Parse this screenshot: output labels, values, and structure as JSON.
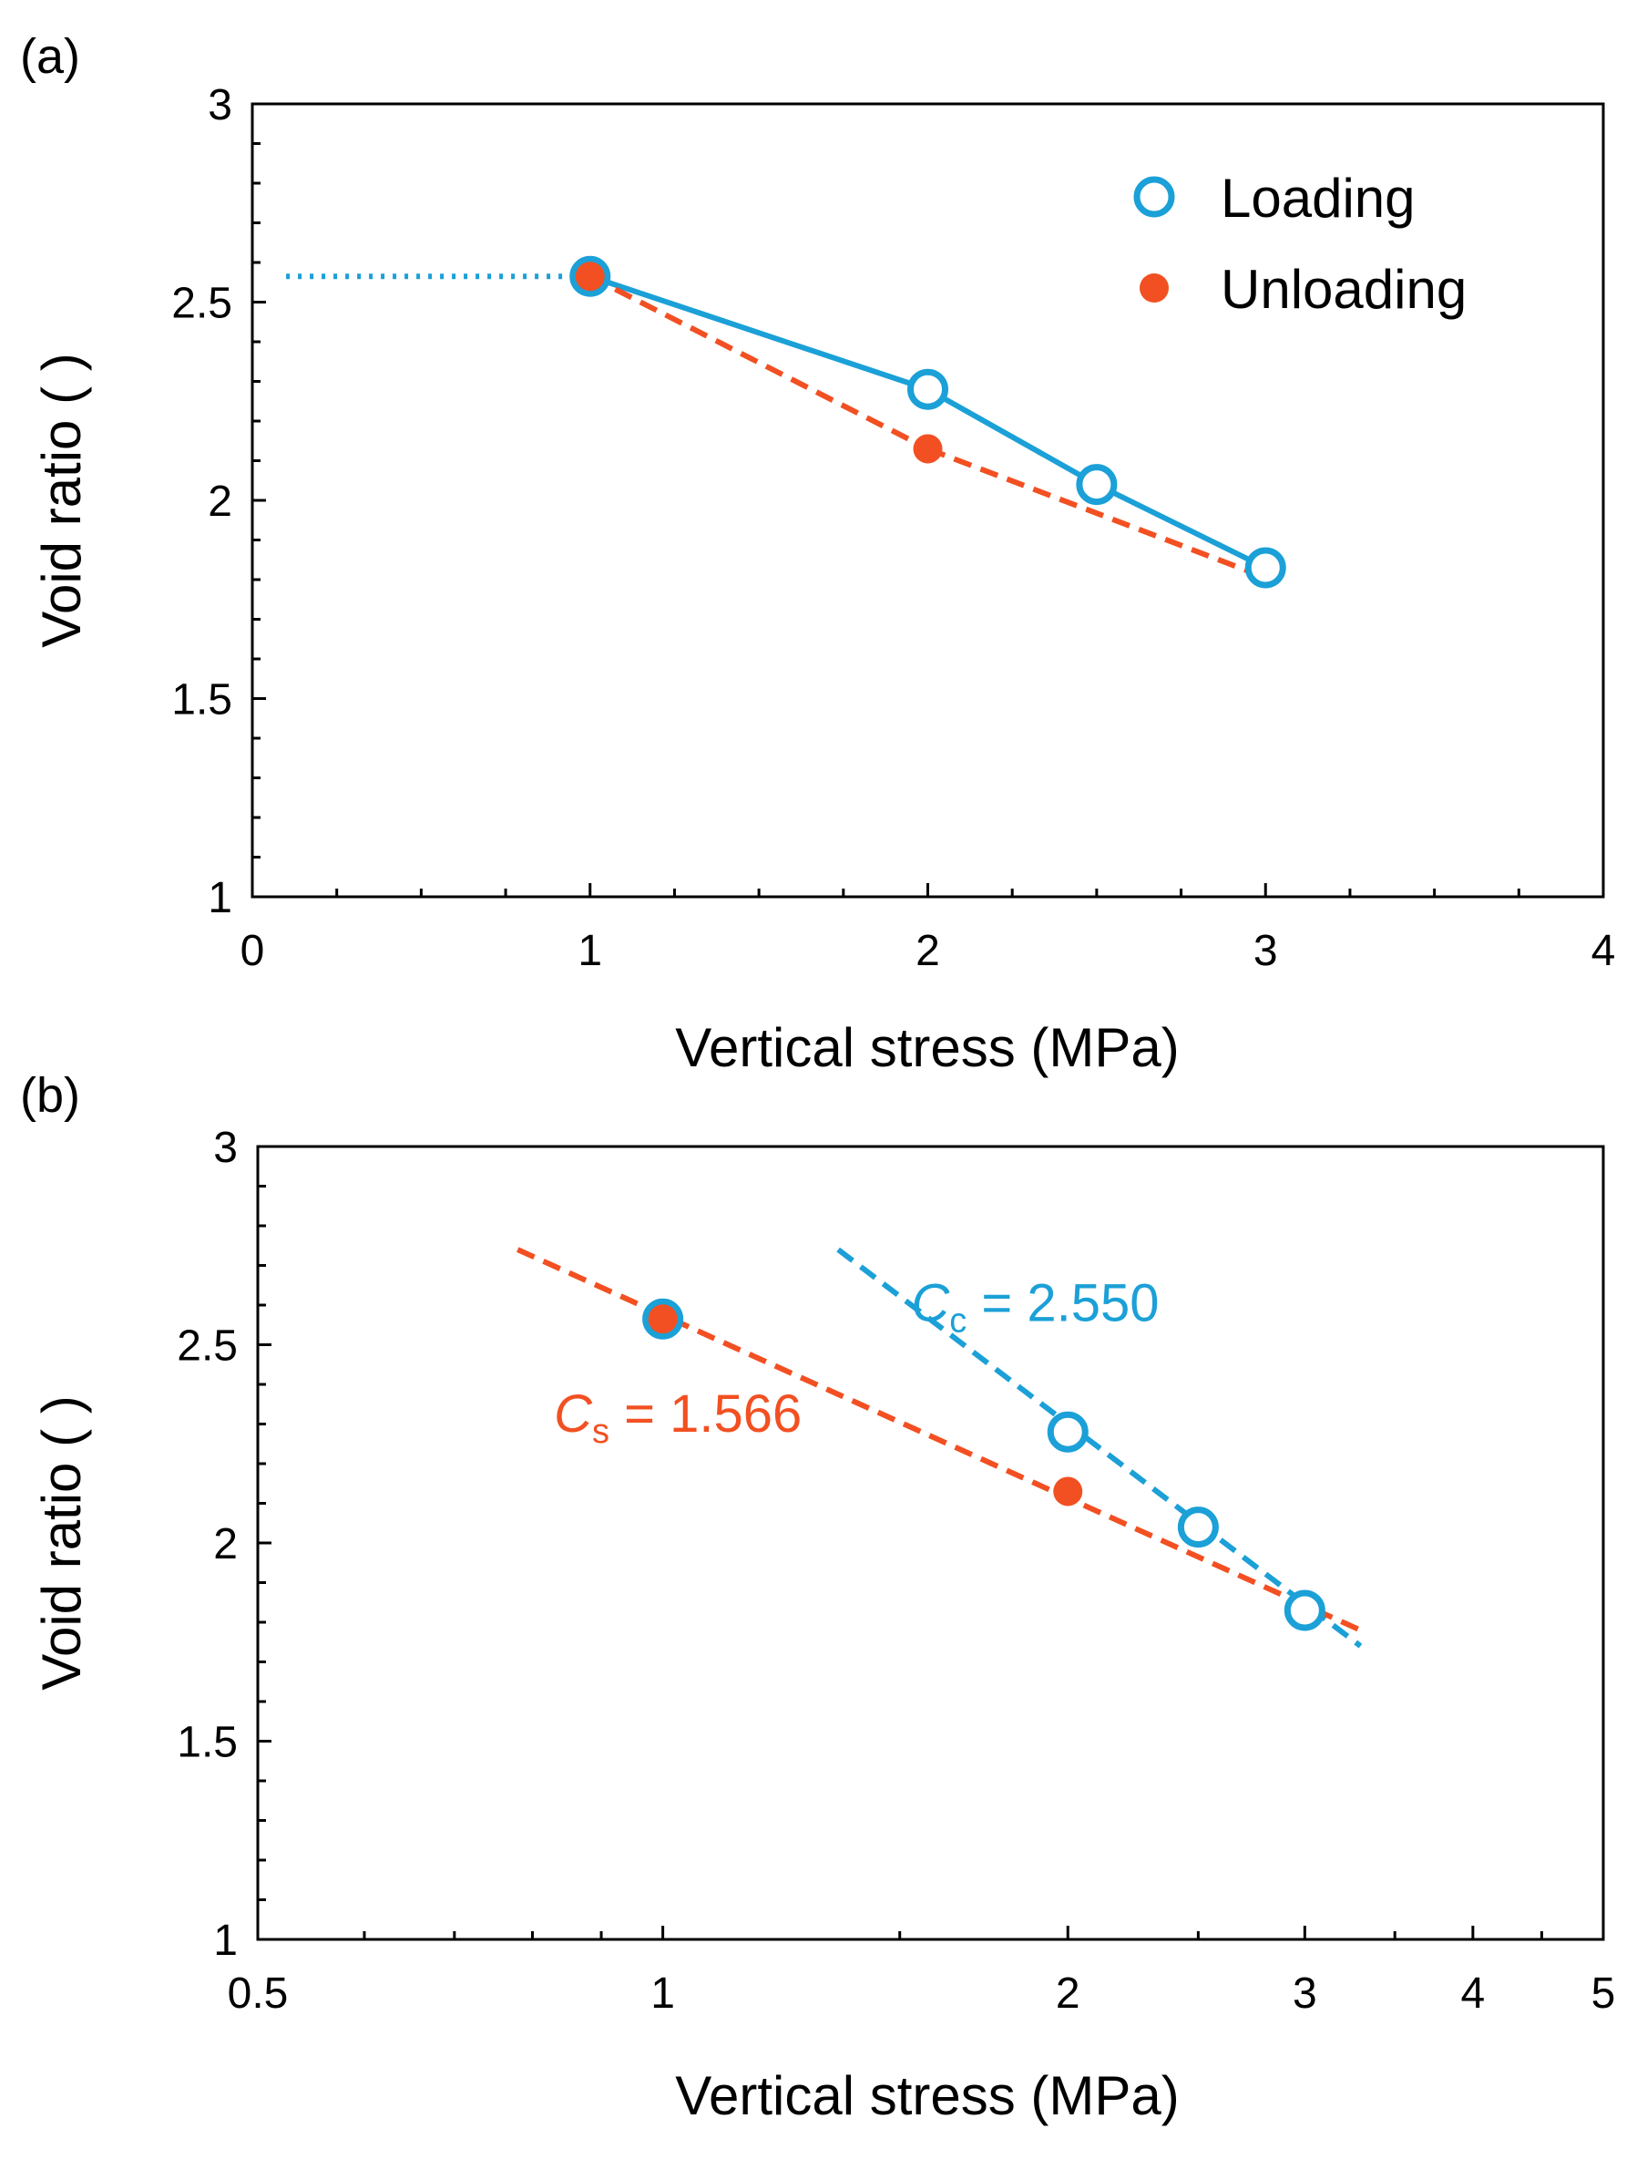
{
  "colors": {
    "loading": "#1ba0d7",
    "unloading": "#f25022",
    "axis": "#000000",
    "background": "#ffffff"
  },
  "chart_data": [
    {
      "panel_label": "(a)",
      "type": "line",
      "xlabel": "Vertical stress (MPa)",
      "ylabel": "Void ratio ( )",
      "xscale": "linear",
      "xlim": [
        0,
        4
      ],
      "ylim": [
        1,
        3
      ],
      "x_ticks": [
        "0",
        "1",
        "2",
        "3",
        "4"
      ],
      "y_ticks": [
        "1",
        "1.5",
        "2",
        "2.5",
        "3"
      ],
      "grid": false,
      "legend_position": "top-right",
      "series": [
        {
          "name": "Loading",
          "marker": "open-circle",
          "line": "solid",
          "color": "#1ba0d7",
          "x": [
            1,
            2,
            2.5,
            3
          ],
          "y": [
            2.565,
            2.28,
            2.04,
            1.83
          ]
        },
        {
          "name": "Unloading",
          "marker": "filled-circle",
          "line": "dashed",
          "color": "#f25022",
          "x": [
            1,
            2
          ],
          "y": [
            2.565,
            2.13
          ]
        }
      ],
      "lines": [
        {
          "kind": "dotted",
          "color": "#1ba0d7",
          "x": [
            0.1,
            1
          ],
          "y": [
            2.565,
            2.565
          ]
        },
        {
          "kind": "dashed",
          "color": "#f25022",
          "x": [
            2,
            3
          ],
          "y": [
            2.13,
            1.805
          ]
        }
      ]
    },
    {
      "panel_label": "(b)",
      "type": "scatter",
      "xlabel": "Vertical stress (MPa)",
      "ylabel": "Void ratio ( )",
      "xscale": "log",
      "xlim": [
        0.5,
        5
      ],
      "ylim": [
        1,
        3
      ],
      "x_ticks": [
        "0.5",
        "1",
        "2",
        "3",
        "4",
        "5"
      ],
      "y_ticks": [
        "1",
        "1.5",
        "2",
        "2.5",
        "3"
      ],
      "grid": false,
      "series": [
        {
          "name": "Loading",
          "marker": "open-circle",
          "color": "#1ba0d7",
          "x": [
            1,
            2,
            2.5,
            3
          ],
          "y": [
            2.565,
            2.28,
            2.04,
            1.83
          ]
        },
        {
          "name": "Unloading",
          "marker": "filled-circle",
          "color": "#f25022",
          "x": [
            1,
            2
          ],
          "y": [
            2.565,
            2.13
          ]
        }
      ],
      "fit_lines": [
        {
          "color": "#1ba0d7",
          "x": [
            1.35,
            3.3
          ],
          "y": [
            2.74,
            1.74
          ]
        },
        {
          "color": "#f25022",
          "x": [
            0.78,
            3.3
          ],
          "y": [
            2.74,
            1.78
          ]
        }
      ],
      "annotations": [
        {
          "italic": "C",
          "sub": "c",
          "rest": " = 2.550",
          "color": "#1ba0d7",
          "x": 1.53,
          "y": 2.56
        },
        {
          "italic": "C",
          "sub": "s",
          "rest": " = 1.566",
          "color": "#f25022",
          "x": 0.83,
          "y": 2.28
        }
      ]
    }
  ]
}
